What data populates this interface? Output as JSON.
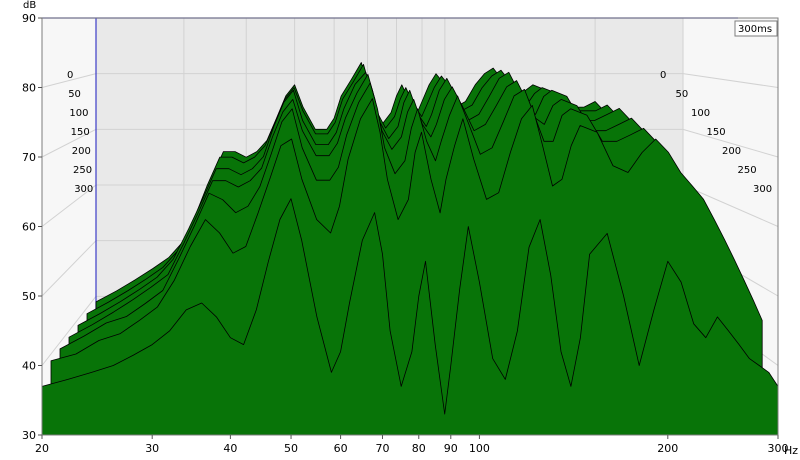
{
  "chart_data": {
    "type": "waterfall",
    "y_unit_label": "dB",
    "x_unit_label": "Hz",
    "depth_unit_label": "300ms",
    "ylim": [
      30,
      90
    ],
    "xlim": [
      20,
      300
    ],
    "x_scale": "log",
    "y_ticks": [
      30,
      40,
      50,
      60,
      70,
      80,
      90
    ],
    "x_ticks": [
      {
        "v": 20,
        "label": "20"
      },
      {
        "v": 30,
        "label": "30"
      },
      {
        "v": 40,
        "label": "40"
      },
      {
        "v": 50,
        "label": "50"
      },
      {
        "v": 60,
        "label": "60"
      },
      {
        "v": 70,
        "label": "70"
      },
      {
        "v": 80,
        "label": "80"
      },
      {
        "v": 90,
        "label": "90"
      },
      {
        "v": 100,
        "label": "100"
      },
      {
        "v": 200,
        "label": "200"
      },
      {
        "v": 300,
        "label": "300"
      }
    ],
    "depth_labels": [
      "0",
      "50",
      "100",
      "150",
      "200",
      "250",
      "300"
    ],
    "fill_color": "#087408",
    "line_color": "#000000",
    "series": [
      {
        "name": "0",
        "x": [
          20,
          22,
          24,
          26,
          28,
          30,
          32,
          34,
          36,
          38,
          40,
          42,
          44,
          46,
          48,
          50,
          52,
          55,
          58,
          60,
          62,
          65,
          68,
          70,
          72,
          75,
          78,
          80,
          82,
          85,
          88,
          90,
          93,
          96,
          100,
          105,
          110,
          115,
          120,
          125,
          130,
          135,
          140,
          145,
          150,
          160,
          170,
          180,
          190,
          200,
          210,
          220,
          230,
          240,
          250,
          260,
          270,
          280,
          290,
          300
        ],
        "y": [
          37,
          38,
          39,
          40,
          41.5,
          43,
          45,
          48,
          49,
          47,
          44,
          43,
          48,
          55,
          61,
          64,
          58,
          47,
          39,
          42,
          49,
          58,
          62,
          56,
          45,
          37,
          42,
          50,
          55,
          43,
          33,
          40,
          51,
          60,
          52,
          41,
          38,
          45,
          57,
          61,
          53,
          42,
          37,
          44,
          56,
          59,
          50,
          40,
          48,
          55,
          52,
          46,
          44,
          47,
          45,
          43,
          41,
          40,
          39,
          37
        ]
      },
      {
        "name": "50",
        "x": [
          20,
          22,
          24,
          26,
          28,
          30,
          32,
          34,
          36,
          38,
          40,
          42,
          44,
          46,
          48,
          50,
          52,
          55,
          58,
          60,
          62,
          65,
          68,
          70,
          72,
          75,
          78,
          80,
          82,
          85,
          88,
          90,
          93,
          96,
          100,
          105,
          110,
          115,
          120,
          125,
          130,
          135,
          140,
          145,
          150,
          160,
          170,
          180,
          190,
          200,
          210,
          220,
          230,
          240,
          250,
          260,
          270,
          280,
          290,
          300
        ],
        "y": [
          39,
          40,
          42,
          43,
          45,
          47,
          51,
          56,
          60,
          58,
          55,
          56,
          61,
          66,
          71,
          72,
          66,
          60,
          58,
          62,
          69,
          75,
          78,
          73,
          66,
          60,
          63,
          70,
          73,
          66,
          61,
          66,
          71,
          75,
          69,
          63,
          64,
          70,
          75,
          77,
          71,
          65,
          66,
          71,
          74,
          73,
          68,
          67,
          70,
          72,
          70,
          67,
          65,
          63,
          60,
          57,
          54,
          51,
          48,
          45
        ]
      },
      {
        "name": "100",
        "x": [
          20,
          22,
          24,
          26,
          28,
          30,
          32,
          34,
          36,
          38,
          40,
          42,
          44,
          46,
          48,
          50,
          52,
          55,
          58,
          60,
          62,
          65,
          68,
          70,
          72,
          75,
          78,
          80,
          82,
          85,
          88,
          90,
          93,
          96,
          100,
          105,
          110,
          115,
          120,
          125,
          130,
          135,
          140,
          145,
          150,
          160,
          170,
          180,
          190,
          200,
          210,
          220,
          230,
          240,
          250,
          260,
          270,
          280,
          290,
          300
        ],
        "y": [
          39,
          41,
          43,
          44,
          46,
          48,
          53,
          58,
          63,
          62,
          60,
          61,
          64,
          69,
          74,
          76,
          70,
          65,
          65,
          67,
          72,
          77,
          80,
          76,
          70,
          66,
          68,
          73,
          76,
          71,
          68,
          71,
          75,
          78,
          74,
          69,
          70,
          74,
          78,
          79,
          75,
          71,
          71,
          75,
          76,
          75,
          71,
          71,
          72,
          73,
          71,
          68,
          66,
          64,
          61,
          58,
          55,
          52,
          49,
          46
        ]
      },
      {
        "name": "150",
        "x": [
          20,
          22,
          24,
          26,
          28,
          30,
          32,
          34,
          36,
          38,
          40,
          42,
          44,
          46,
          48,
          50,
          52,
          55,
          58,
          60,
          62,
          65,
          68,
          70,
          72,
          75,
          78,
          80,
          82,
          85,
          88,
          90,
          93,
          96,
          100,
          105,
          110,
          115,
          120,
          125,
          130,
          135,
          140,
          145,
          150,
          160,
          170,
          180,
          190,
          200,
          210,
          220,
          230,
          240,
          250,
          260,
          270,
          280,
          290,
          300
        ],
        "y": [
          39,
          41,
          43,
          45,
          47,
          49,
          54,
          59,
          64,
          64,
          63,
          64,
          66,
          71,
          75,
          77,
          72,
          68,
          68,
          70,
          74,
          78,
          81,
          77,
          72,
          69,
          71,
          75,
          77,
          73,
          71,
          73,
          77,
          79,
          76,
          72,
          73,
          76,
          79,
          80,
          77,
          74,
          73,
          76,
          77,
          76,
          72,
          72,
          73,
          74,
          72,
          69,
          67,
          65,
          62,
          59,
          56,
          53,
          50,
          47
        ]
      },
      {
        "name": "200",
        "x": [
          20,
          22,
          24,
          26,
          28,
          30,
          32,
          34,
          36,
          38,
          40,
          42,
          44,
          46,
          48,
          50,
          52,
          55,
          58,
          60,
          62,
          65,
          68,
          70,
          72,
          75,
          78,
          80,
          82,
          85,
          88,
          90,
          93,
          96,
          100,
          105,
          110,
          115,
          120,
          125,
          130,
          135,
          140,
          145,
          150,
          160,
          170,
          180,
          190,
          200,
          210,
          220,
          230,
          240,
          250,
          260,
          270,
          280,
          290,
          300
        ],
        "y": [
          39,
          41,
          43,
          45,
          47,
          50,
          55,
          60,
          65,
          65,
          64,
          65,
          67,
          72,
          76,
          78,
          73,
          69,
          69,
          71,
          75,
          79,
          81,
          78,
          73,
          70,
          72,
          76,
          78,
          74,
          72,
          74,
          78,
          80,
          77,
          73,
          74,
          77,
          80,
          81,
          78,
          75,
          74,
          77,
          78,
          77,
          73,
          73,
          74,
          75,
          73,
          70,
          68,
          66,
          63,
          60,
          57,
          54,
          51,
          48
        ]
      },
      {
        "name": "250",
        "x": [
          20,
          22,
          24,
          26,
          28,
          30,
          32,
          34,
          36,
          38,
          40,
          42,
          44,
          46,
          48,
          50,
          52,
          55,
          58,
          60,
          62,
          65,
          68,
          70,
          72,
          75,
          78,
          80,
          82,
          85,
          88,
          90,
          93,
          96,
          100,
          105,
          110,
          115,
          120,
          125,
          130,
          135,
          140,
          145,
          150,
          160,
          170,
          180,
          190,
          200,
          210,
          220,
          230,
          240,
          250,
          260,
          270,
          280,
          290,
          300
        ],
        "y": [
          39,
          41,
          43,
          45,
          47,
          50,
          55,
          61,
          66,
          66,
          65,
          66,
          68,
          72,
          76,
          78,
          74,
          70,
          70,
          72,
          76,
          79,
          82,
          78,
          74,
          71,
          73,
          76,
          78,
          75,
          73,
          75,
          78,
          80,
          78,
          74,
          75,
          78,
          80,
          81,
          79,
          76,
          75,
          77,
          78,
          77,
          74,
          74,
          74,
          75,
          73,
          70,
          68,
          66,
          63,
          60,
          57,
          54,
          51,
          48
        ]
      },
      {
        "name": "300",
        "x": [
          20,
          22,
          24,
          26,
          28,
          30,
          32,
          34,
          36,
          38,
          40,
          42,
          44,
          46,
          48,
          50,
          52,
          55,
          58,
          60,
          62,
          65,
          68,
          70,
          72,
          75,
          78,
          80,
          82,
          85,
          88,
          90,
          93,
          96,
          100,
          105,
          110,
          115,
          120,
          125,
          130,
          135,
          140,
          145,
          150,
          160,
          170,
          180,
          190,
          200,
          210,
          220,
          230,
          240,
          250,
          260,
          270,
          280,
          290,
          300
        ],
        "y": [
          39,
          41,
          43,
          45,
          47,
          50,
          55,
          61,
          66,
          66,
          65,
          66,
          68,
          72,
          76,
          78,
          74,
          70,
          70,
          72,
          76,
          79,
          82,
          78,
          74,
          71,
          73,
          76,
          78,
          75,
          73,
          75,
          78,
          80,
          78,
          74,
          75,
          78,
          80,
          81,
          79,
          76,
          75,
          77,
          78,
          77,
          74,
          74,
          74,
          75,
          73,
          70,
          68,
          66,
          63,
          60,
          57,
          54,
          51,
          48
        ]
      }
    ]
  }
}
